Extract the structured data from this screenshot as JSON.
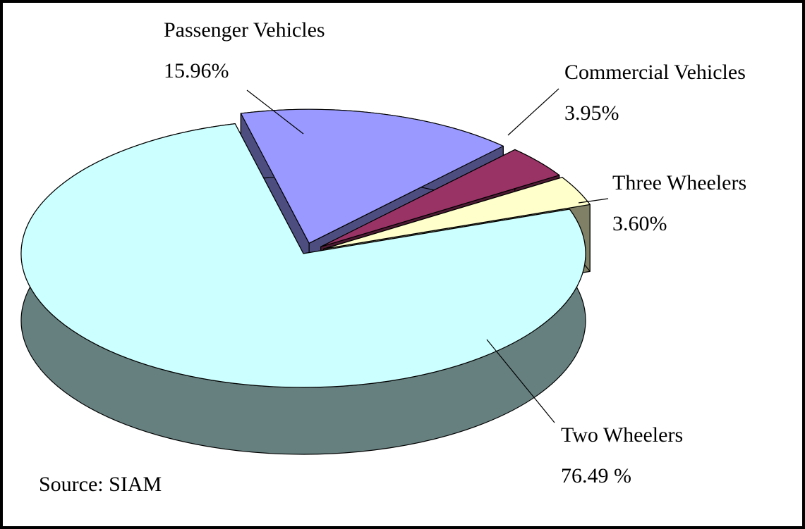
{
  "chart_data": {
    "type": "pie",
    "categories": [
      "Two Wheelers",
      "Passenger Vehicles",
      "Commercial Vehicles",
      "Three Wheelers"
    ],
    "values": [
      76.49,
      15.96,
      3.95,
      3.6
    ],
    "value_labels": [
      "76.49 %",
      "15.96%",
      "3.95%",
      "3.60%"
    ],
    "colors": [
      "#ccffff",
      "#9999ff",
      "#993366",
      "#ffffcc"
    ],
    "side_colors": [
      "#668080",
      "#4d4d80",
      "#4d1a33",
      "#808066"
    ],
    "source": "Source: SIAM"
  }
}
